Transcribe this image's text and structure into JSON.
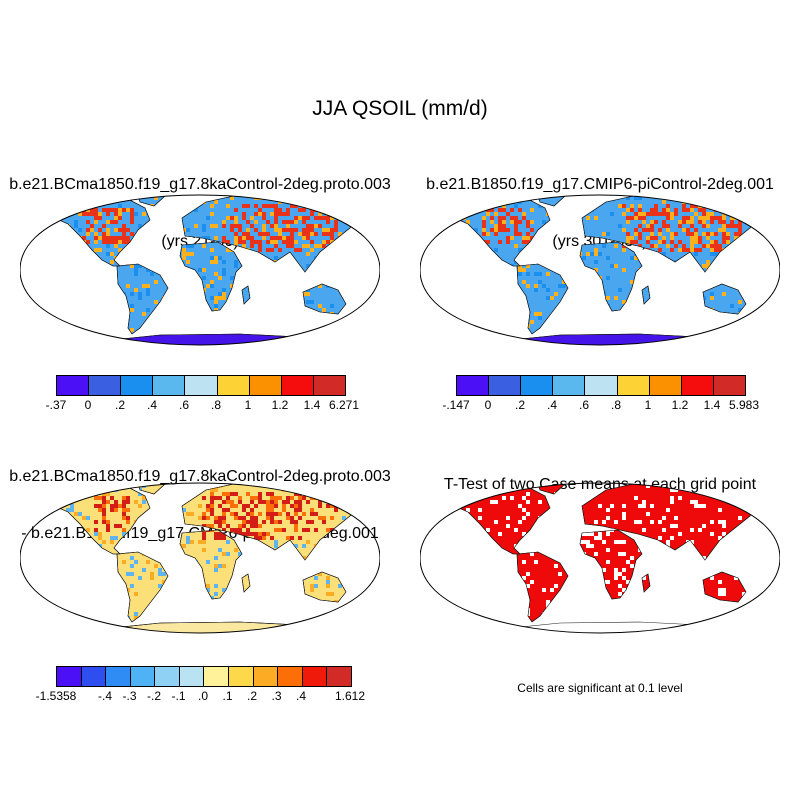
{
  "title": "JJA QSOIL (mm/d)",
  "panels": [
    {
      "title": "b.e21.BCma1850.f19_g17.8kaControl-2deg.proto.003",
      "subtitle": "(yrs 21-50)"
    },
    {
      "title": "b.e21.B1850.f19_g17.CMIP6-piControl-2deg.001",
      "subtitle": "(yrs 301-330)"
    },
    {
      "title": "b.e21.BCma1850.f19_g17.8kaControl-2deg.proto.003",
      "subtitle": "- b.e21.B1850.f19_g17.CMIP6-piControl-2deg.001"
    },
    {
      "title": "T-Test of two Case means at each grid point",
      "subtitle": ""
    }
  ],
  "colorbars": [
    {
      "colors": [
        "#4b10f5",
        "#3a5fe0",
        "#1b8ff0",
        "#5ab8ef",
        "#bde3f3",
        "#fcd235",
        "#fb9000",
        "#f50d0d",
        "#d22a27"
      ],
      "labels": [
        "-.37",
        "0",
        ".2",
        ".4",
        ".6",
        ".8",
        "1",
        "1.2",
        "1.4",
        "6.271"
      ]
    },
    {
      "colors": [
        "#4b10f5",
        "#3a5fe0",
        "#1b8ff0",
        "#5ab8ef",
        "#bde3f3",
        "#fcd235",
        "#fb9000",
        "#f50d0d",
        "#d22a27"
      ],
      "labels": [
        "-.147",
        "0",
        ".2",
        ".4",
        ".6",
        ".8",
        "1",
        "1.2",
        "1.4",
        "5.983"
      ]
    },
    {
      "colors": [
        "#4b10f5",
        "#2f4ef0",
        "#2f8cf5",
        "#4fb2f5",
        "#8fd0f5",
        "#b9e3f3",
        "#fff29a",
        "#fcd84a",
        "#fcac24",
        "#fb6e08",
        "#f01a0a",
        "#d22a27"
      ],
      "labels": [
        "-1.5358",
        "",
        "-.4",
        "-.3",
        "-.2",
        "-.1",
        ".0",
        ".1",
        ".2",
        ".3",
        ".4",
        "",
        "1.612"
      ]
    }
  ],
  "significance_note": "Cells are significant at 0.1 level",
  "map_colors": {
    "abs_base": "#4aa6ee",
    "abs_hot": "#e8321a",
    "abs_warm": "#fbb11d",
    "antarctica_abs": "#4414e8",
    "diff_base": "#fbe07a",
    "diff_hot": "#d21e16",
    "diff_cool": "#5fb4ef",
    "antarctica_diff": "#fae7a0",
    "ttest": "#ee0a0a"
  }
}
